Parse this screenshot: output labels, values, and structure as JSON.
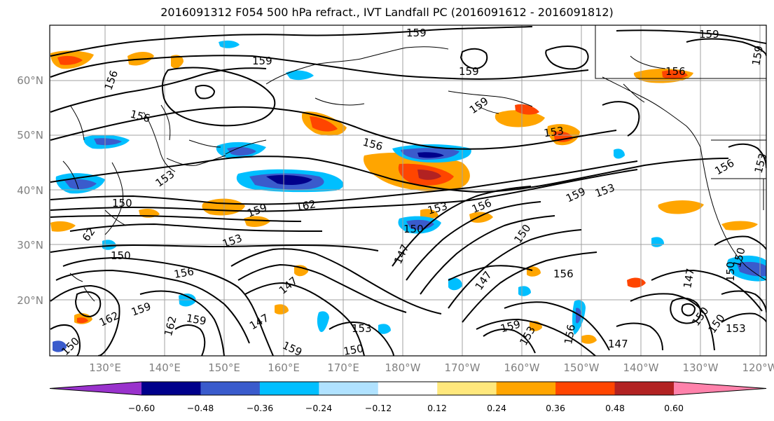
{
  "title": "2016091312 F054 500 hPa refract., IVT Landfall PC (2016091612 - 2016091812)",
  "latitude_labels": [
    "60°N",
    "50°N",
    "40°N",
    "30°N",
    "20°N"
  ],
  "longitude_labels": [
    "130°E",
    "140°E",
    "150°E",
    "160°E",
    "170°E",
    "180°W",
    "170°W",
    "160°W",
    "150°W",
    "140°W",
    "130°W",
    "120°W"
  ],
  "colorbar": {
    "tick_labels": [
      "−0.60",
      "−0.48",
      "−0.36",
      "−0.24",
      "−0.12",
      "0.12",
      "0.24",
      "0.36",
      "0.48",
      "0.60"
    ],
    "colors": [
      "#9932cc",
      "#00008b",
      "#3a5bcc",
      "#00bfff",
      "#b0e2ff",
      "#ffffff",
      "#ffe87c",
      "#ffa500",
      "#ff4500",
      "#b22222",
      "#ff82ab"
    ]
  },
  "contour_labels": [
    {
      "text": "159"
    },
    {
      "text": "159"
    },
    {
      "text": "156"
    },
    {
      "text": "159"
    },
    {
      "text": "159"
    },
    {
      "text": "156"
    },
    {
      "text": "159"
    },
    {
      "text": "159"
    },
    {
      "text": "156"
    },
    {
      "text": "153"
    },
    {
      "text": "156"
    },
    {
      "text": "153"
    },
    {
      "text": "156"
    },
    {
      "text": "150"
    },
    {
      "text": "159"
    },
    {
      "text": "162"
    },
    {
      "text": "156"
    },
    {
      "text": "159"
    },
    {
      "text": "153"
    },
    {
      "text": "153"
    },
    {
      "text": "62"
    },
    {
      "text": "153"
    },
    {
      "text": "150"
    },
    {
      "text": "150"
    },
    {
      "text": "147"
    },
    {
      "text": "150"
    },
    {
      "text": "150"
    },
    {
      "text": "156"
    },
    {
      "text": "147"
    },
    {
      "text": "147"
    },
    {
      "text": "156"
    },
    {
      "text": "162"
    },
    {
      "text": "159"
    },
    {
      "text": "162"
    },
    {
      "text": "159"
    },
    {
      "text": "147"
    },
    {
      "text": "153"
    },
    {
      "text": "159"
    },
    {
      "text": "153"
    },
    {
      "text": "156"
    },
    {
      "text": "150"
    },
    {
      "text": "159"
    },
    {
      "text": "153"
    },
    {
      "text": "147"
    },
    {
      "text": "150"
    },
    {
      "text": "150"
    },
    {
      "text": "147"
    },
    {
      "text": "150"
    },
    {
      "text": "150"
    },
    {
      "text": "153"
    }
  ]
}
